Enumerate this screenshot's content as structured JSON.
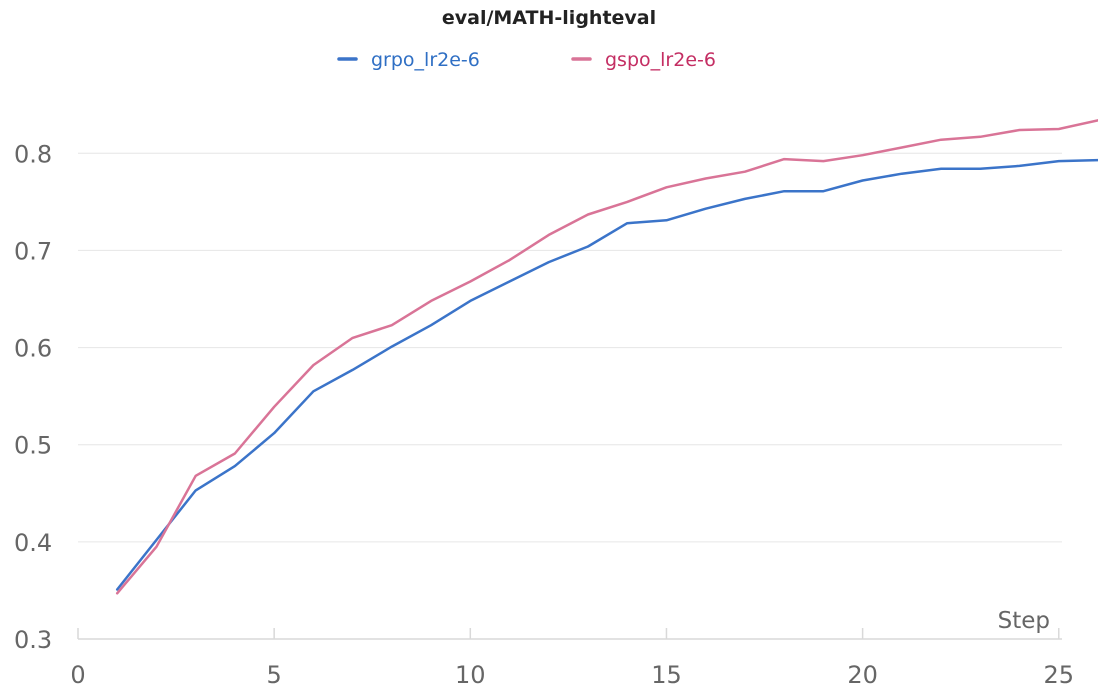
{
  "chart_data": {
    "type": "line",
    "title": "eval/MATH-lighteval",
    "xlabel": "Step",
    "ylabel": "",
    "xlim": [
      0,
      26
    ],
    "ylim": [
      0.3,
      0.86
    ],
    "x_ticks": [
      0,
      5,
      10,
      15,
      20,
      25
    ],
    "y_ticks": [
      0.3,
      0.4,
      0.5,
      0.6,
      0.7,
      0.8
    ],
    "grid": "horizontal",
    "legend_position": "top-center",
    "series": [
      {
        "name": "grpo_lr2e-6",
        "color": "#3b74c9",
        "legend_text_color": "#2f6fc4",
        "x": [
          1,
          2,
          3,
          4,
          5,
          6,
          7,
          8,
          9,
          10,
          11,
          12,
          13,
          14,
          15,
          16,
          17,
          18,
          19,
          20,
          21,
          22,
          23,
          24,
          25,
          26
        ],
        "y": [
          0.351,
          0.402,
          0.453,
          0.478,
          0.512,
          0.555,
          0.577,
          0.601,
          0.623,
          0.648,
          0.668,
          0.688,
          0.704,
          0.728,
          0.731,
          0.743,
          0.753,
          0.761,
          0.761,
          0.772,
          0.779,
          0.784,
          0.784,
          0.787,
          0.792,
          0.793
        ]
      },
      {
        "name": "gspo_lr2e-6",
        "color": "#d97497",
        "legend_text_color": "#c42e63",
        "x": [
          1,
          2,
          3,
          4,
          5,
          6,
          7,
          8,
          9,
          10,
          11,
          12,
          13,
          14,
          15,
          16,
          17,
          18,
          19,
          20,
          21,
          22,
          23,
          24,
          25,
          26
        ],
        "y": [
          0.347,
          0.395,
          0.468,
          0.491,
          0.539,
          0.582,
          0.61,
          0.623,
          0.648,
          0.668,
          0.69,
          0.716,
          0.737,
          0.75,
          0.765,
          0.774,
          0.781,
          0.794,
          0.792,
          0.798,
          0.806,
          0.814,
          0.817,
          0.824,
          0.825,
          0.834
        ]
      }
    ]
  }
}
